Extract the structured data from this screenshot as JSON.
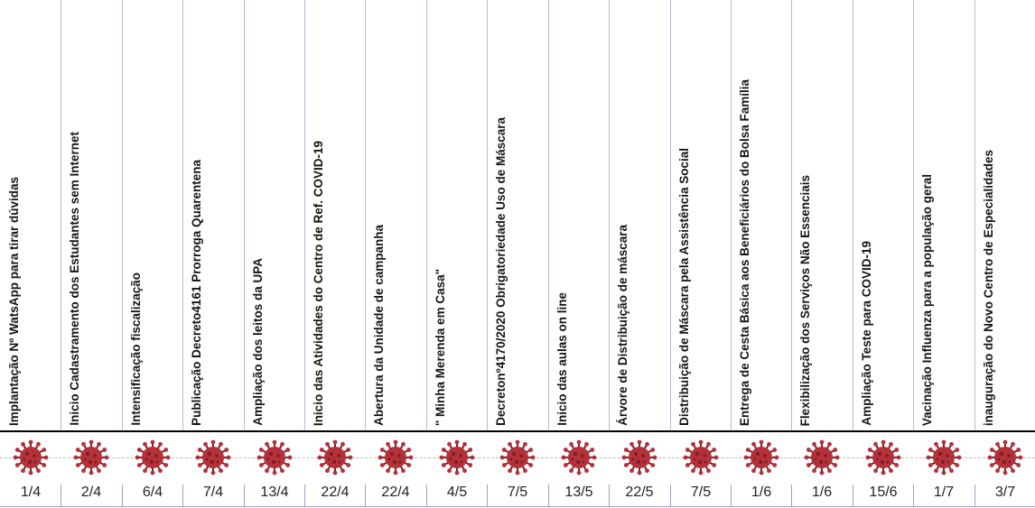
{
  "events": [
    {
      "label": "Implantação Nº WatsApp para tirar dúvidas",
      "date": "1/4"
    },
    {
      "label": "Inicio Cadastramento dos Estudantes sem Internet",
      "date": "2/4"
    },
    {
      "label": "Intensificação fiscalização",
      "date": "6/4"
    },
    {
      "label": "Publicação Decreto4161 Prorroga Quarentena",
      "date": "7/4"
    },
    {
      "label": "Ampliação dos leitos  da UPA",
      "date": "13/4"
    },
    {
      "label": "Inicio das Atividades do Centro de Ref. COVID-19",
      "date": "22/4"
    },
    {
      "label": "Abertura da Unidade de campanha",
      "date": "22/4"
    },
    {
      "label": "\" Minha Merenda em Casa\"",
      "date": "4/5"
    },
    {
      "label": "Decretonº4170/2020 Obrigatoriedade Uso de Máscara",
      "date": "7/5"
    },
    {
      "label": "Inicio das aulas on line",
      "date": "13/5"
    },
    {
      "label": "Árvore de Distribuição de máscara",
      "date": "22/5"
    },
    {
      "label": "Distribuição de Máscara pela Assistência Social",
      "date": "7/5"
    },
    {
      "label": "Entrega de Cesta Básica aos Beneficiários do Bolsa Família",
      "date": "1/6"
    },
    {
      "label": "Flexibilização  dos Serviços Não Essenciais",
      "date": "1/6"
    },
    {
      "label": "Ampliação Teste para COVID-19",
      "date": "15/6"
    },
    {
      "label": "Vacinação Influenza para a população geral",
      "date": "1/7"
    },
    {
      "label": "inauguração do Novo Centro de Especialidades",
      "date": "3/7"
    }
  ],
  "colors": {
    "virus": "#b5313a",
    "virus_dark": "#7a1d24",
    "grid": "#b7b9d8"
  },
  "icon": "coronavirus-icon"
}
